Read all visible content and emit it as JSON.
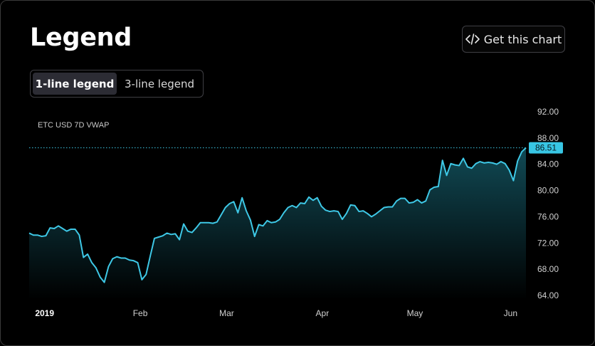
{
  "header": {
    "title": "Legend",
    "get_chart_label": "Get this chart",
    "code_icon": "code-icon"
  },
  "toggle": {
    "options": [
      {
        "label": "1-line legend",
        "active": true
      },
      {
        "label": "3-line legend",
        "active": false
      }
    ]
  },
  "colors": {
    "line": "#3ec8e6",
    "area_top": "#114a55",
    "area_bottom": "#000000",
    "price_badge_bg": "#38c6e4",
    "price_badge_text": "#0a1a20",
    "axis_text": "#d0d0d0"
  },
  "chart_data": {
    "type": "area",
    "series_label": "ETC USD 7D VWAP",
    "last_value_label": "86.51",
    "last_value": 86.51,
    "ylim": [
      62.0,
      92.0
    ],
    "y_ticks": [
      "92.00",
      "88.00",
      "84.00",
      "80.00",
      "76.00",
      "72.00",
      "68.00",
      "64.00"
    ],
    "y_tick_values": [
      92,
      88,
      84,
      80,
      76,
      72,
      68,
      64
    ],
    "x_ticks": [
      {
        "label": "2019",
        "day": 5,
        "bold": true
      },
      {
        "label": "Feb",
        "day": 36,
        "bold": false
      },
      {
        "label": "Mar",
        "day": 64,
        "bold": false
      },
      {
        "label": "Apr",
        "day": 95,
        "bold": false
      },
      {
        "label": "May",
        "day": 125,
        "bold": false
      },
      {
        "label": "Jun",
        "day": 156,
        "bold": false
      }
    ],
    "x_start_day": 0,
    "x_end_day": 161,
    "values": [
      73.5,
      73.2,
      73.2,
      73.0,
      73.1,
      74.3,
      74.2,
      74.6,
      74.2,
      73.8,
      74.1,
      74.1,
      73.2,
      69.8,
      70.3,
      69.0,
      68.2,
      66.8,
      66.0,
      68.4,
      69.6,
      69.9,
      69.7,
      69.7,
      69.4,
      69.3,
      69.0,
      66.4,
      67.2,
      70.0,
      72.7,
      72.9,
      73.1,
      73.5,
      73.3,
      73.4,
      72.5,
      74.9,
      73.8,
      73.6,
      74.3,
      75.1,
      75.1,
      75.1,
      75.0,
      75.2,
      76.3,
      77.4,
      78.0,
      78.3,
      76.6,
      78.9,
      76.9,
      75.5,
      73.0,
      74.8,
      74.6,
      75.4,
      75.1,
      75.2,
      75.6,
      76.6,
      77.4,
      77.7,
      77.4,
      78.1,
      78.0,
      79.0,
      78.5,
      78.9,
      77.6,
      77.0,
      76.8,
      76.9,
      76.8,
      75.6,
      76.5,
      77.8,
      77.7,
      76.8,
      76.9,
      76.5,
      76.0,
      76.4,
      76.9,
      77.4,
      77.5,
      77.5,
      78.4,
      78.8,
      78.8,
      78.1,
      78.2,
      78.6,
      78.1,
      78.4,
      80.1,
      80.5,
      80.6,
      84.6,
      82.3,
      84.1,
      83.9,
      83.8,
      84.9,
      83.6,
      83.4,
      84.1,
      84.4,
      84.2,
      84.3,
      84.2,
      84.0,
      84.4,
      84.1,
      83.1,
      81.5,
      84.5,
      85.9,
      86.51
    ]
  }
}
